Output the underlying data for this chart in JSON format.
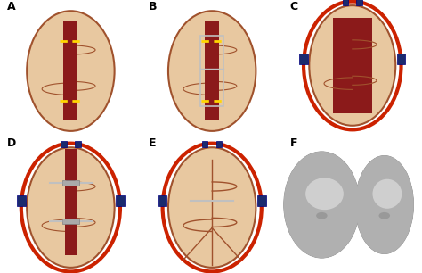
{
  "figure_width": 4.74,
  "figure_height": 3.06,
  "dpi": 100,
  "bg_color": "#ffffff",
  "panel_labels": [
    "A",
    "B",
    "C",
    "D",
    "E",
    "F"
  ],
  "label_fontsize": 9,
  "label_color": "black",
  "green_bg": "#4a8c6e",
  "teal_bg": "#3aafb0",
  "skin_color": "#e8c8a0",
  "dark_red": "#8b1a1a",
  "red_outline": "#cc2200",
  "blue_device": "#1a2a6e",
  "gray_head": "#b0b0b0",
  "yellow_dashes": "#ffd700",
  "silver": "#aaaaaa"
}
